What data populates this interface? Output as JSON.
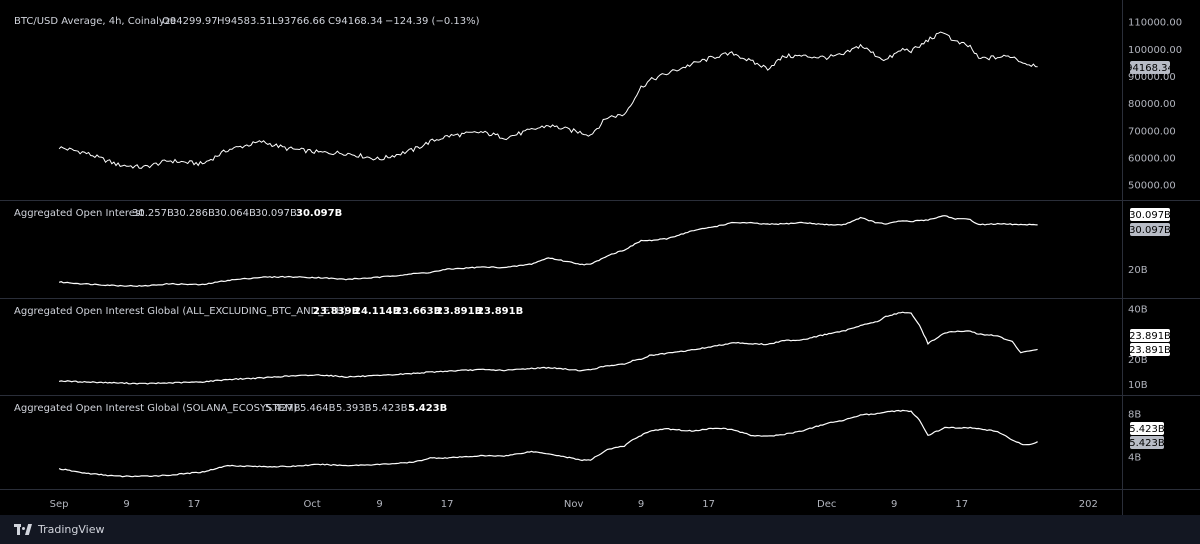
{
  "colors": {
    "background": "#000000",
    "line": "#ffffff",
    "separator": "#2a2e39",
    "tag_bg_light": "#ffffff",
    "tag_bg_gray": "#b8bcc6",
    "footer_bg": "#131722"
  },
  "chart_data": [
    {
      "type": "line",
      "title": "BTC/USD Average, 4h, Coinalyze",
      "ohlc": {
        "open": "O94299.97",
        "high": "H94583.51",
        "low": "L93766.66",
        "close": "C94168.34",
        "change": "−124.39 (−0.13%)"
      },
      "last_value_label": "94168.34",
      "ylim": [
        46000,
        113000
      ],
      "y_ticks": [
        "110000.00",
        "100000.00",
        "90000.00",
        "80000.00",
        "70000.00",
        "60000.00",
        "50000.00"
      ],
      "y_tick_values": [
        110000,
        100000,
        90000,
        80000,
        70000,
        60000,
        50000
      ],
      "x": [
        0,
        3,
        7,
        10,
        13,
        17,
        20,
        24,
        27,
        31,
        34,
        38,
        42,
        44,
        46,
        50,
        53,
        56,
        58,
        62,
        63,
        65,
        67,
        68,
        69,
        70,
        72,
        75,
        78,
        80,
        82,
        84,
        86,
        88,
        91,
        93,
        95,
        97,
        98,
        100,
        101,
        102,
        103,
        105,
        106,
        108,
        109,
        111,
        113,
        114,
        115,
        116
      ],
      "values": [
        63900,
        62000,
        57500,
        56500,
        59000,
        57800,
        63000,
        66000,
        63500,
        62000,
        61800,
        59500,
        63000,
        66000,
        68000,
        69500,
        67500,
        70300,
        72000,
        69300,
        68500,
        75000,
        76000,
        81000,
        86000,
        88500,
        91000,
        94500,
        97500,
        98500,
        95500,
        93000,
        97500,
        97500,
        97000,
        98000,
        101500,
        97500,
        96000,
        100000,
        99500,
        101000,
        103500,
        106500,
        103000,
        101000,
        96500,
        97000,
        97500,
        95500,
        94500,
        94168
      ]
    },
    {
      "type": "line",
      "title": "Aggregated Open Interest",
      "legend_values": [
        "30.257B",
        "30.286B",
        "30.064B",
        "30.097B",
        "30.097B"
      ],
      "last_value_labels": [
        "30.097B",
        "30.097B"
      ],
      "ylim": [
        14.5,
        34
      ],
      "y_ticks": [
        "20B"
      ],
      "y_tick_values": [
        20
      ],
      "x": [
        0,
        3,
        7,
        10,
        13,
        17,
        20,
        24,
        27,
        31,
        34,
        38,
        42,
        44,
        46,
        50,
        53,
        56,
        58,
        62,
        63,
        65,
        67,
        68,
        69,
        70,
        72,
        75,
        78,
        80,
        82,
        84,
        86,
        88,
        91,
        93,
        95,
        97,
        98,
        100,
        101,
        102,
        103,
        105,
        106,
        108,
        109,
        111,
        113,
        114,
        115,
        116
      ],
      "values": [
        17.2,
        16.8,
        16.4,
        16.3,
        16.8,
        16.6,
        17.6,
        18.3,
        18.4,
        18.2,
        17.8,
        18.3,
        19.1,
        19.4,
        20.1,
        20.6,
        20.5,
        21.3,
        22.7,
        21.2,
        21.2,
        23.2,
        24.5,
        25.5,
        26.6,
        26.6,
        27.0,
        28.8,
        29.9,
        30.7,
        30.6,
        30.3,
        30.4,
        30.7,
        30.2,
        30.2,
        31.8,
        30.6,
        30.4,
        31.1,
        30.9,
        31.2,
        31.3,
        32.3,
        31.6,
        31.4,
        30.2,
        30.4,
        30.3,
        30.2,
        30.2,
        30.1
      ]
    },
    {
      "type": "line",
      "title": "Aggregated Open Interest Global (ALL_EXCLUDING_BTC_AND_ETH)",
      "legend_values": [
        "23.839B",
        "24.114B",
        "23.663B",
        "23.891B",
        "23.891B"
      ],
      "last_value_labels": [
        "23.891B",
        "23.891B"
      ],
      "ylim": [
        7,
        42
      ],
      "y_ticks": [
        "40B",
        "20B",
        "10B"
      ],
      "y_tick_values": [
        40,
        20,
        10
      ],
      "x": [
        0,
        3,
        7,
        10,
        13,
        17,
        20,
        24,
        27,
        31,
        34,
        38,
        42,
        44,
        46,
        50,
        53,
        56,
        58,
        62,
        63,
        65,
        67,
        68,
        69,
        70,
        72,
        75,
        78,
        80,
        82,
        84,
        86,
        88,
        91,
        93,
        95,
        97,
        98,
        100,
        101,
        102,
        103,
        105,
        106,
        108,
        109,
        111,
        113,
        114,
        115,
        116
      ],
      "values": [
        11.4,
        11.0,
        10.6,
        10.3,
        10.6,
        11.0,
        12.0,
        12.6,
        13.3,
        13.8,
        13.0,
        13.5,
        14.4,
        14.9,
        15.3,
        15.9,
        15.6,
        16.4,
        16.7,
        15.5,
        15.9,
        17.5,
        18.0,
        19.5,
        20.0,
        21.5,
        22.3,
        23.7,
        25.4,
        26.7,
        26.2,
        25.9,
        27.5,
        27.7,
        30.0,
        31.2,
        33.5,
        35.0,
        37.0,
        38.8,
        38.2,
        33.5,
        26.3,
        30.5,
        31.0,
        31.2,
        30.0,
        29.5,
        27.0,
        22.5,
        23.4,
        23.9
      ]
    },
    {
      "type": "line",
      "title": "Aggregated Open Interest Global (SOLANA_ECOSYSTEM)",
      "legend_values": [
        "5.427B",
        "5.464B",
        "5.393B",
        "5.423B",
        "5.423B"
      ],
      "last_value_labels": [
        "5.423B",
        "5.423B"
      ],
      "ylim": [
        1.3,
        9
      ],
      "y_ticks": [
        "8B",
        "4B"
      ],
      "y_tick_values": [
        8,
        4
      ],
      "x": [
        0,
        3,
        7,
        10,
        13,
        17,
        20,
        24,
        27,
        31,
        34,
        38,
        42,
        44,
        46,
        50,
        53,
        56,
        58,
        62,
        63,
        65,
        67,
        68,
        69,
        70,
        72,
        75,
        78,
        80,
        82,
        84,
        86,
        88,
        91,
        93,
        95,
        97,
        98,
        100,
        101,
        102,
        103,
        105,
        106,
        108,
        109,
        111,
        113,
        114,
        115,
        116
      ],
      "values": [
        2.9,
        2.5,
        2.2,
        2.2,
        2.3,
        2.6,
        3.2,
        3.1,
        3.1,
        3.3,
        3.2,
        3.3,
        3.5,
        3.9,
        3.9,
        4.1,
        4.1,
        4.5,
        4.3,
        3.7,
        3.7,
        4.7,
        5.0,
        5.6,
        6.0,
        6.4,
        6.6,
        6.4,
        6.7,
        6.5,
        6.0,
        5.9,
        6.1,
        6.4,
        7.1,
        7.4,
        7.9,
        8.0,
        8.2,
        8.3,
        8.2,
        7.4,
        6.0,
        6.7,
        6.7,
        6.7,
        6.6,
        6.4,
        5.6,
        5.2,
        5.1,
        5.4
      ]
    }
  ],
  "x_axis": {
    "labels": [
      "Sep",
      "9",
      "17",
      "Oct",
      "9",
      "17",
      "Nov",
      "9",
      "17",
      "Dec",
      "9",
      "17",
      "202"
    ],
    "day_index": [
      0,
      8,
      16,
      30,
      38,
      46,
      61,
      69,
      77,
      91,
      99,
      107,
      122
    ],
    "range": [
      -7,
      126
    ]
  },
  "footer": {
    "brand": "TradingView"
  }
}
